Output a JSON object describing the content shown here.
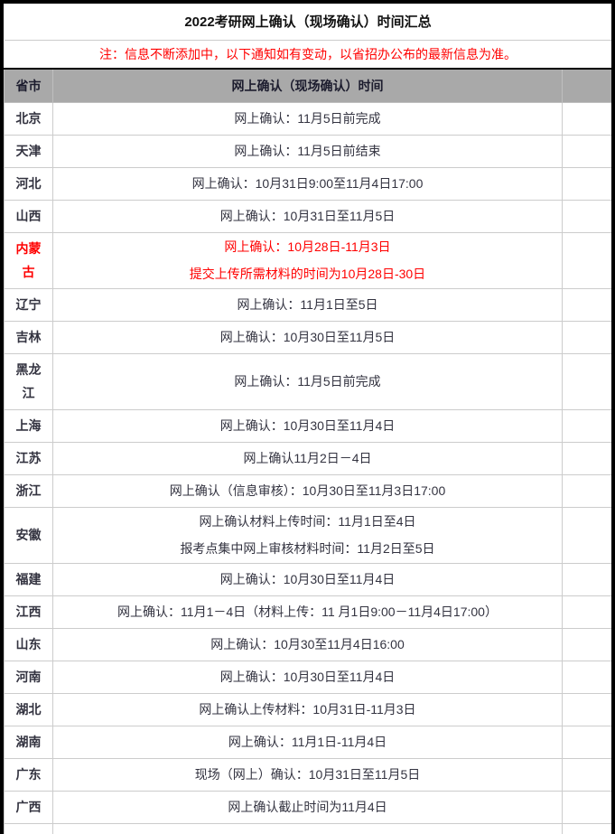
{
  "title": "2022考研网上确认（现场确认）时间汇总",
  "note": "注：信息不断添加中，以下通知如有变动，以省招办公布的最新信息为准。",
  "colors": {
    "header_bg": "#a9a9a9",
    "alert_red": "#ff0000",
    "grid_line": "#cccccc",
    "outer_border": "#000000",
    "body_text": "#333340"
  },
  "table": {
    "headers": [
      "省市",
      "网上确认（现场确认）时间",
      ""
    ],
    "rows": [
      {
        "province": "北京",
        "lines": [
          "网上确认：11月5日前完成"
        ],
        "highlight": false
      },
      {
        "province": "天津",
        "lines": [
          "网上确认：11月5日前结束"
        ],
        "highlight": false
      },
      {
        "province": "河北",
        "lines": [
          "网上确认：10月31日9:00至11月4日17:00"
        ],
        "highlight": false
      },
      {
        "province": "山西",
        "lines": [
          "网上确认：10月31日至11月5日"
        ],
        "highlight": false
      },
      {
        "province": "内蒙古",
        "lines": [
          "网上确认：10月28日-11月3日",
          "提交上传所需材料的时间为10月28日-30日"
        ],
        "highlight": true
      },
      {
        "province": "辽宁",
        "lines": [
          "网上确认：11月1日至5日"
        ],
        "highlight": false
      },
      {
        "province": "吉林",
        "lines": [
          "网上确认：10月30日至11月5日"
        ],
        "highlight": false
      },
      {
        "province": "黑龙江",
        "lines": [
          "网上确认：11月5日前完成"
        ],
        "highlight": false
      },
      {
        "province": "上海",
        "lines": [
          "网上确认：10月30日至11月4日"
        ],
        "highlight": false
      },
      {
        "province": "江苏",
        "lines": [
          "网上确认11月2日－4日"
        ],
        "highlight": false
      },
      {
        "province": "浙江",
        "lines": [
          "网上确认（信息审核）：10月30日至11月3日17:00"
        ],
        "highlight": false
      },
      {
        "province": "安徽",
        "lines": [
          "网上确认材料上传时间：11月1日至4日",
          "报考点集中网上审核材料时间：11月2日至5日"
        ],
        "highlight": false
      },
      {
        "province": "福建",
        "lines": [
          "网上确认：10月30日至11月4日"
        ],
        "highlight": false
      },
      {
        "province": "江西",
        "lines": [
          "网上确认：11月1－4日（材料上传：11 月1日9:00－11月4日17:00）"
        ],
        "highlight": false
      },
      {
        "province": "山东",
        "lines": [
          "网上确认：10月30至11月4日16:00"
        ],
        "highlight": false
      },
      {
        "province": "河南",
        "lines": [
          "网上确认：10月30日至11月4日"
        ],
        "highlight": false
      },
      {
        "province": "湖北",
        "lines": [
          "网上确认上传材料：10月31日-11月3日"
        ],
        "highlight": false
      },
      {
        "province": "湖南",
        "lines": [
          "网上确认：11月1日-11月4日"
        ],
        "highlight": false
      },
      {
        "province": "广东",
        "lines": [
          "现场（网上）确认：10月31日至11月5日"
        ],
        "highlight": false
      },
      {
        "province": "广西",
        "lines": [
          "网上确认截止时间为11月4日"
        ],
        "highlight": false
      }
    ]
  }
}
